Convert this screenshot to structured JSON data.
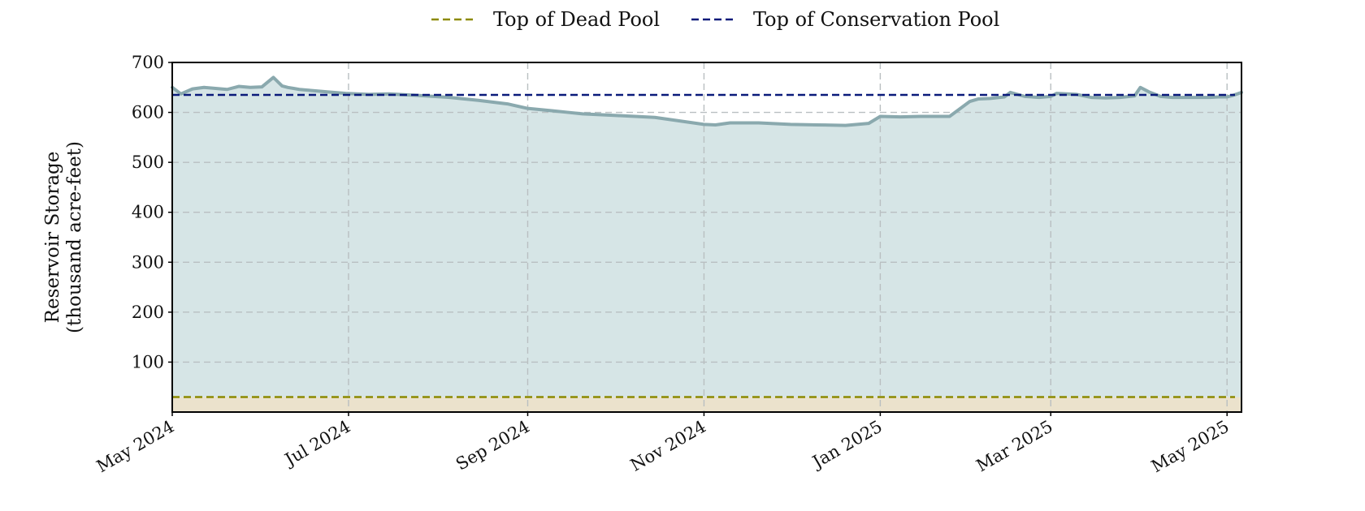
{
  "chart_data": {
    "type": "area",
    "ylabel_lines": [
      "Reservoir Storage",
      "(thousand acre-feet)"
    ],
    "xlabel": "",
    "ylim": [
      0,
      700
    ],
    "yticks": [
      100,
      200,
      300,
      400,
      500,
      600,
      700
    ],
    "xlim": [
      "2024-05-01",
      "2025-05-06"
    ],
    "xticks": [
      {
        "date": "2024-05-01",
        "label": "May 2024"
      },
      {
        "date": "2024-07-01",
        "label": "Jul 2024"
      },
      {
        "date": "2024-09-01",
        "label": "Sep 2024"
      },
      {
        "date": "2024-11-01",
        "label": "Nov 2024"
      },
      {
        "date": "2025-01-01",
        "label": "Jan 2025"
      },
      {
        "date": "2025-03-01",
        "label": "Mar 2025"
      },
      {
        "date": "2025-05-01",
        "label": "May 2025"
      }
    ],
    "grid": true,
    "legend_placement": "top-center",
    "reference_lines": [
      {
        "name": "Top of Dead Pool",
        "value": 30,
        "color": "#8c8a00"
      },
      {
        "name": "Top of Conservation Pool",
        "value": 635,
        "color": "#0a1a7a"
      }
    ],
    "series": [
      {
        "color": "#8aa9ae",
        "fill": "#d6e5e6",
        "x": [
          "2024-05-01",
          "2024-05-04",
          "2024-05-08",
          "2024-05-12",
          "2024-05-16",
          "2024-05-20",
          "2024-05-24",
          "2024-05-28",
          "2024-06-01",
          "2024-06-05",
          "2024-06-08",
          "2024-06-10",
          "2024-06-12",
          "2024-06-14",
          "2024-06-16",
          "2024-06-20",
          "2024-06-24",
          "2024-06-30",
          "2024-07-08",
          "2024-07-15",
          "2024-07-25",
          "2024-08-05",
          "2024-08-15",
          "2024-08-25",
          "2024-09-01",
          "2024-09-10",
          "2024-09-15",
          "2024-09-20",
          "2024-10-01",
          "2024-10-15",
          "2024-11-01",
          "2024-11-05",
          "2024-11-10",
          "2024-11-20",
          "2024-12-01",
          "2024-12-10",
          "2024-12-20",
          "2024-12-28",
          "2025-01-01",
          "2025-01-08",
          "2025-01-15",
          "2025-01-25",
          "2025-02-01",
          "2025-02-04",
          "2025-02-08",
          "2025-02-13",
          "2025-02-15",
          "2025-02-20",
          "2025-02-25",
          "2025-03-01",
          "2025-03-03",
          "2025-03-10",
          "2025-03-15",
          "2025-03-20",
          "2025-03-25",
          "2025-03-30",
          "2025-04-01",
          "2025-04-04",
          "2025-04-08",
          "2025-04-12",
          "2025-04-20",
          "2025-04-25",
          "2025-04-28",
          "2025-05-01",
          "2025-05-03",
          "2025-05-06"
        ],
        "values": [
          650,
          637,
          647,
          650,
          648,
          646,
          652,
          650,
          651,
          670,
          653,
          650,
          648,
          646,
          645,
          643,
          641,
          638,
          636,
          637,
          634,
          630,
          624,
          617,
          608,
          603,
          600,
          597,
          594,
          590,
          576,
          575,
          579,
          579,
          576,
          575,
          574,
          578,
          592,
          591,
          592,
          592,
          622,
          627,
          628,
          631,
          640,
          632,
          630,
          632,
          638,
          636,
          630,
          629,
          630,
          633,
          650,
          641,
          632,
          630,
          630,
          630,
          631,
          631,
          634,
          640
        ]
      }
    ]
  }
}
